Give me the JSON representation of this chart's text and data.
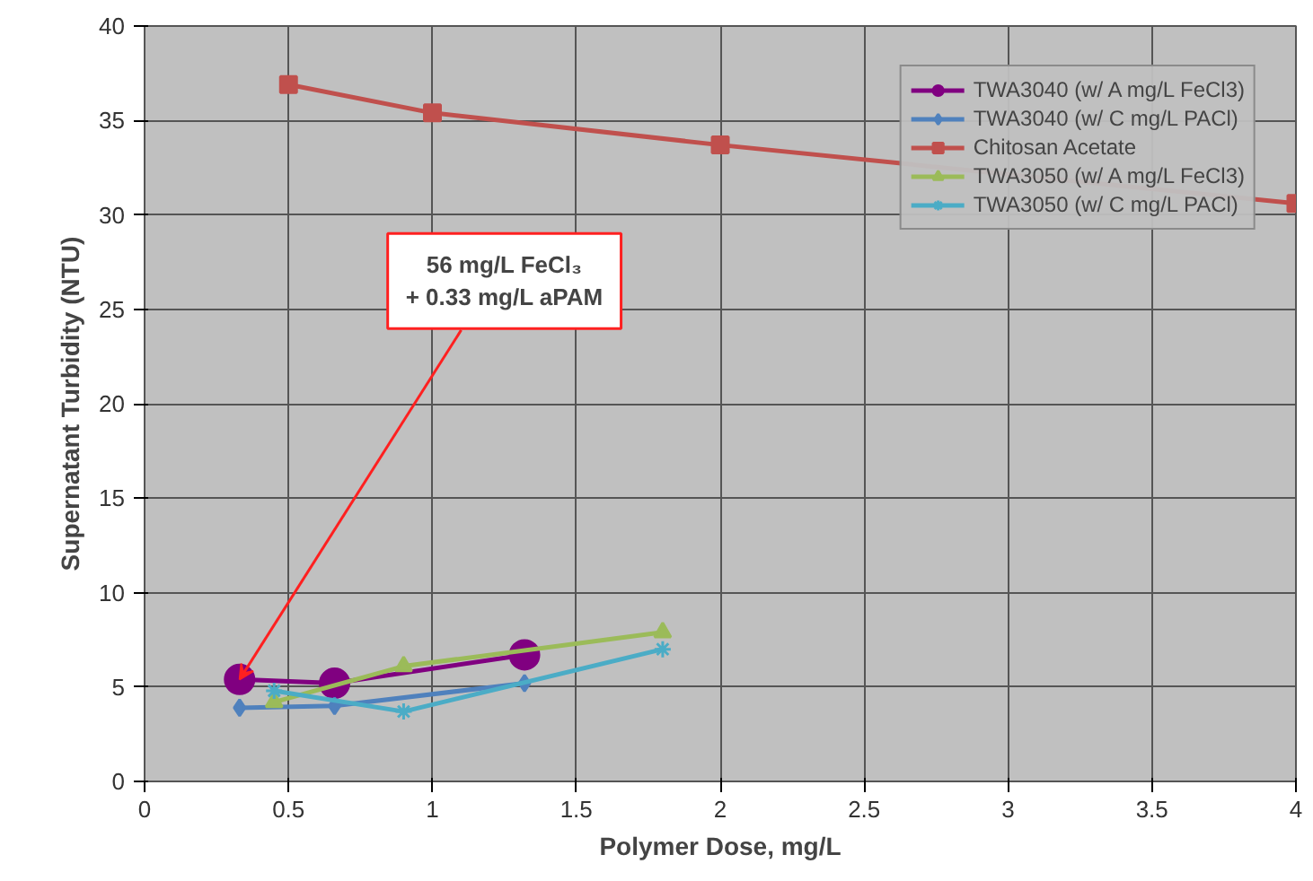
{
  "chart_data": {
    "type": "line",
    "xlabel": "Polymer Dose, mg/L",
    "ylabel": "Supernatant Turbidity (NTU)",
    "xlim": [
      0,
      4
    ],
    "ylim": [
      0,
      40
    ],
    "xticks": [
      0,
      0.5,
      1,
      1.5,
      2,
      2.5,
      3,
      3.5,
      4
    ],
    "yticks": [
      0,
      5,
      10,
      15,
      20,
      25,
      30,
      35,
      40
    ],
    "grid": true,
    "legend": "top right",
    "line_style": "solid",
    "series": [
      {
        "name": "TWA3040 (w/ A mg/L FeCl3)",
        "color": "#800080",
        "marker": "circle",
        "x": [
          0.33,
          0.66,
          1.32
        ],
        "values": [
          5.4,
          5.2,
          6.7
        ]
      },
      {
        "name": "TWA3040 (w/ C mg/L PACl)",
        "color": "#4f81bd",
        "marker": "diamond",
        "x": [
          0.33,
          0.66,
          1.32
        ],
        "values": [
          3.9,
          4.0,
          5.2
        ]
      },
      {
        "name": "Chitosan Acetate",
        "color": "#c0504d",
        "marker": "square",
        "x": [
          0.5,
          1.0,
          2.0,
          4.0
        ],
        "values": [
          36.9,
          35.4,
          33.7,
          30.6
        ]
      },
      {
        "name": "TWA3050 (w/ A mg/L FeCl3)",
        "color": "#9bbb59",
        "marker": "triangle",
        "x": [
          0.45,
          0.9,
          1.8
        ],
        "values": [
          4.2,
          6.1,
          7.9
        ]
      },
      {
        "name": "TWA3050 (w/ C mg/L PACl)",
        "color": "#4bacc6",
        "marker": "cross",
        "x": [
          0.45,
          0.9,
          1.8
        ],
        "values": [
          4.8,
          3.7,
          7.0
        ]
      }
    ],
    "annotations": [
      {
        "text": "56 mg/L FeCl₃\n+ 0.33 mg/L aPAM",
        "x": 0.33,
        "y": 5.4
      }
    ]
  }
}
